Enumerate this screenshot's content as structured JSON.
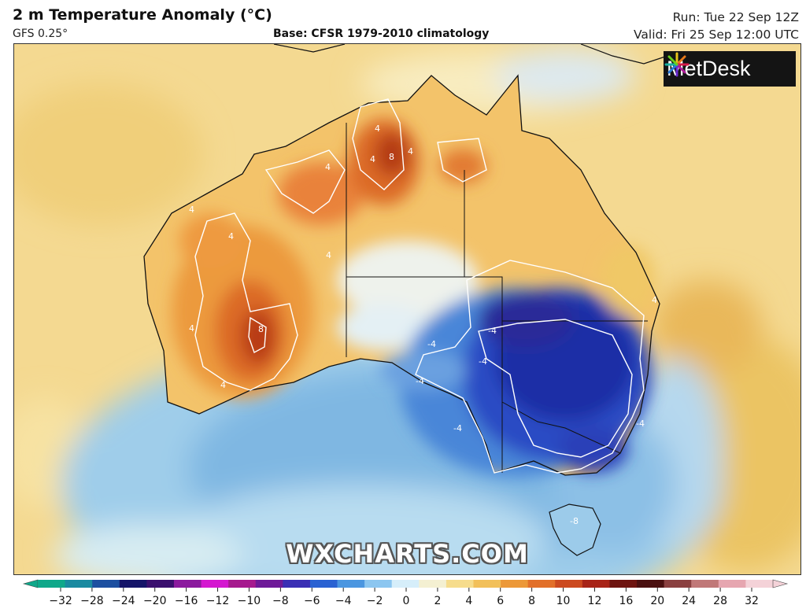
{
  "header": {
    "title": "2 m Temperature Anomaly (°C)",
    "model": "GFS 0.25°",
    "base": "Base: CFSR 1979-2010 climatology",
    "run": "Run: Tue 22 Sep 12Z",
    "valid": "Valid: Fri 25 Sep 12:00 UTC"
  },
  "logo": {
    "text": "MetDesk",
    "icon": "starburst-logo-icon"
  },
  "watermark": "WXCHARTS.COM",
  "contour_labels": {
    "c4a": "4",
    "c4b": "4",
    "c4c": "4",
    "c4d": "4",
    "c4e": "4",
    "c4f": "4",
    "c4g": "4",
    "c4h": "4",
    "c4i": "4",
    "c4j": "4",
    "c8a": "8",
    "c8b": "8",
    "cm4a": "-4",
    "cm4b": "-4",
    "cm4c": "-4",
    "cm4d": "-4",
    "cm4e": "-4",
    "cm4f": "-4",
    "cm8a": "-8"
  },
  "legend": {
    "ticks": [
      "−32",
      "−28",
      "−24",
      "−20",
      "−16",
      "−12",
      "−10",
      "−8",
      "−6",
      "−4",
      "−2",
      "0",
      "2",
      "4",
      "6",
      "8",
      "10",
      "12",
      "16",
      "20",
      "24",
      "28",
      "32"
    ],
    "colors": [
      "#0fa88a",
      "#1a8aa0",
      "#1c4fa0",
      "#141468",
      "#3a0f6e",
      "#8b1a9e",
      "#d418d0",
      "#a61a8e",
      "#6e1a98",
      "#3a2fb4",
      "#2a62d2",
      "#4b96e0",
      "#8cc6f0",
      "#d6eefa",
      "#f4f0d2",
      "#f6dc8c",
      "#f2c05a",
      "#ec9838",
      "#e2702a",
      "#cc4a20",
      "#a82418",
      "#6e1410",
      "#4a1010",
      "#8a4040",
      "#c07878",
      "#e6a6b0",
      "#f4d2d8"
    ]
  }
}
